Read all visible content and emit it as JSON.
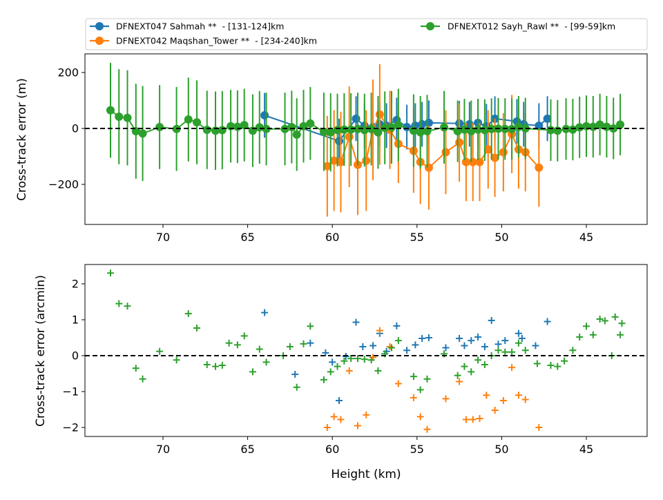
{
  "colors": {
    "blue": "#1f77b4",
    "orange": "#ff7f0e",
    "green": "#2ca02c"
  },
  "chart_data": [
    {
      "type": "line",
      "title": "",
      "xlabel": "",
      "ylabel": "Cross-track error (m)",
      "xlim": [
        74.5,
        41.5
      ],
      "ylim": [
        -350,
        270
      ],
      "x_inverted": true,
      "xticks": [
        "70",
        "65",
        "60",
        "55",
        "50",
        "45"
      ],
      "yticks": [
        "200",
        "0",
        "−200"
      ],
      "reference_line": 0,
      "legend_position": "top, above plot, 2 columns",
      "series": [
        {
          "name": "DFNEXT047 Sahmah **  - [131-124]km",
          "color": "#1f77b4",
          "x": [
            64.0,
            59.6,
            58.6,
            58.1,
            57.6,
            57.2,
            56.8,
            56.2,
            55.6,
            55.1,
            54.7,
            54.3,
            52.5,
            51.9,
            51.4,
            50.9,
            50.4,
            49.1,
            48.7,
            47.8,
            47.3
          ],
          "y": [
            47,
            -45,
            35,
            10,
            5,
            15,
            10,
            30,
            5,
            10,
            15,
            20,
            18,
            15,
            20,
            8,
            35,
            25,
            15,
            10,
            35
          ],
          "err": [
            80,
            80,
            80,
            80,
            80,
            80,
            80,
            80,
            80,
            80,
            80,
            80,
            80,
            80,
            80,
            80,
            80,
            80,
            80,
            80,
            80
          ]
        },
        {
          "name": "DFNEXT042 Maqshan_Tower **  - [234-240]km",
          "color": "#ff7f0e",
          "x": [
            60.3,
            59.9,
            59.5,
            59.0,
            58.5,
            58.0,
            57.6,
            57.2,
            56.6,
            56.1,
            55.2,
            54.8,
            54.3,
            53.3,
            52.5,
            52.1,
            51.7,
            51.3,
            50.8,
            50.4,
            49.9,
            49.4,
            49.0,
            48.6,
            47.8
          ],
          "y": [
            -135,
            -115,
            -120,
            -30,
            -130,
            -115,
            -5,
            50,
            -5,
            -55,
            -80,
            -120,
            -140,
            -85,
            -50,
            -120,
            -120,
            -120,
            -75,
            -105,
            -85,
            -20,
            -75,
            -85,
            -140
          ],
          "err": [
            180,
            180,
            180,
            180,
            180,
            180,
            180,
            180,
            140,
            140,
            150,
            150,
            150,
            150,
            140,
            140,
            140,
            140,
            140,
            140,
            140,
            140,
            140,
            140,
            140
          ]
        },
        {
          "name": "DFNEXT012 Sayh_Rawl **  - [99-59]km",
          "color": "#2ca02c",
          "x": [
            73.1,
            72.6,
            72.1,
            71.6,
            71.2,
            70.2,
            69.2,
            68.5,
            68.0,
            67.4,
            66.9,
            66.5,
            66.0,
            65.6,
            65.2,
            64.7,
            64.3,
            63.9,
            62.8,
            62.4,
            62.1,
            61.7,
            61.3,
            60.5,
            60.1,
            59.7,
            59.3,
            58.9,
            58.5,
            58.1,
            57.7,
            57.3,
            56.9,
            56.5,
            56.1,
            55.2,
            54.8,
            54.4,
            53.4,
            52.6,
            52.2,
            51.8,
            51.4,
            51.0,
            50.6,
            50.2,
            49.8,
            49.4,
            49.0,
            48.6,
            47.1,
            46.7,
            46.2,
            45.8,
            45.4,
            45.0,
            44.6,
            44.2,
            43.8,
            43.4,
            43.0
          ],
          "y": [
            65,
            42,
            38,
            -10,
            -18,
            5,
            -2,
            32,
            22,
            -5,
            -8,
            -6,
            8,
            6,
            12,
            -8,
            4,
            -2,
            -2,
            5,
            -22,
            8,
            18,
            -12,
            -14,
            -6,
            -4,
            -4,
            -2,
            -6,
            -2,
            -14,
            2,
            4,
            12,
            -8,
            -14,
            -10,
            4,
            -10,
            -4,
            -10,
            -4,
            -6,
            -2,
            -1,
            -2,
            -2,
            6,
            0,
            -6,
            -8,
            -2,
            -4,
            4,
            8,
            6,
            14,
            6,
            0,
            14
          ],
          "err": [
            170,
            170,
            170,
            170,
            170,
            150,
            150,
            150,
            150,
            140,
            140,
            140,
            130,
            130,
            130,
            130,
            130,
            130,
            130,
            130,
            130,
            130,
            130,
            140,
            140,
            130,
            130,
            130,
            130,
            130,
            130,
            130,
            130,
            130,
            130,
            130,
            130,
            130,
            130,
            110,
            110,
            110,
            110,
            110,
            110,
            110,
            110,
            110,
            110,
            110,
            110,
            110,
            110,
            110,
            110,
            110,
            110,
            110,
            110,
            110,
            110
          ]
        }
      ]
    },
    {
      "type": "scatter",
      "title": "",
      "xlabel": "Height (km)",
      "ylabel": "Cross-track error (arcmin)",
      "xlim": [
        74.5,
        41.5
      ],
      "ylim": [
        -2.3,
        2.5
      ],
      "x_inverted": true,
      "xticks": [
        "70",
        "65",
        "60",
        "55",
        "50",
        "45"
      ],
      "yticks": [
        "2",
        "1",
        "0",
        "−1",
        "−2"
      ],
      "reference_line": 0,
      "marker": "+",
      "series": [
        {
          "color": "#1f77b4",
          "x": [
            64.0,
            62.2,
            61.3,
            60.4,
            60.0,
            59.6,
            59.2,
            58.6,
            58.2,
            57.6,
            57.2,
            56.8,
            56.2,
            55.6,
            55.1,
            54.7,
            54.3,
            53.3,
            52.5,
            52.2,
            51.8,
            51.4,
            51.0,
            50.6,
            50.2,
            49.8,
            49.0,
            48.8,
            48.0,
            47.3
          ],
          "y": [
            1.2,
            -0.52,
            0.35,
            0.08,
            -0.18,
            -1.25,
            -0.02,
            0.93,
            0.25,
            0.28,
            0.62,
            0.12,
            0.83,
            0.15,
            0.3,
            0.48,
            0.5,
            0.22,
            0.48,
            0.28,
            0.42,
            0.52,
            0.25,
            0.98,
            0.32,
            0.42,
            0.62,
            0.48,
            0.28,
            0.95
          ]
        },
        {
          "color": "#ff7f0e",
          "x": [
            60.3,
            59.9,
            59.5,
            59.0,
            58.5,
            58.0,
            57.6,
            57.2,
            56.6,
            56.1,
            55.2,
            54.8,
            54.4,
            53.3,
            52.5,
            52.1,
            51.7,
            51.3,
            50.9,
            50.4,
            49.9,
            49.4,
            49.0,
            48.6,
            47.8
          ],
          "y": [
            -2.0,
            -1.7,
            -1.78,
            -0.42,
            -1.95,
            -1.65,
            -0.05,
            0.7,
            0.25,
            -0.78,
            -1.17,
            -1.7,
            -2.05,
            -1.2,
            -0.72,
            -1.78,
            -1.78,
            -1.75,
            -1.1,
            -1.52,
            -1.25,
            -0.33,
            -1.1,
            -1.22,
            -2.0
          ]
        },
        {
          "color": "#2ca02c",
          "x": [
            73.1,
            72.6,
            72.1,
            71.6,
            71.2,
            70.2,
            69.2,
            68.5,
            68.0,
            67.4,
            66.9,
            66.5,
            66.1,
            65.6,
            65.2,
            64.7,
            64.3,
            63.9,
            62.9,
            62.5,
            62.1,
            61.7,
            61.3,
            60.5,
            60.1,
            59.7,
            59.3,
            58.9,
            58.5,
            58.1,
            57.7,
            57.3,
            56.9,
            56.5,
            56.1,
            55.2,
            54.8,
            54.4,
            53.4,
            52.6,
            52.2,
            51.8,
            51.4,
            51.0,
            50.6,
            50.2,
            49.8,
            49.4,
            49.0,
            48.6,
            47.9,
            47.1,
            46.7,
            46.3,
            45.8,
            45.4,
            45.0,
            44.6,
            44.2,
            43.9,
            43.5,
            43.0
          ],
          "y": [
            2.3,
            1.45,
            1.38,
            -0.35,
            -0.65,
            0.12,
            -0.12,
            1.17,
            0.77,
            -0.25,
            -0.3,
            -0.27,
            0.35,
            0.3,
            0.55,
            -0.45,
            0.18,
            -0.18,
            0.0,
            0.25,
            -0.88,
            0.33,
            0.82,
            -0.67,
            -0.45,
            -0.3,
            -0.15,
            -0.08,
            -0.08,
            -0.1,
            -0.12,
            -0.42,
            0.05,
            0.22,
            0.42,
            -0.58,
            -0.95,
            -0.65,
            0.05,
            -0.55,
            -0.3,
            -0.45,
            -0.12,
            -0.25,
            0.0,
            0.15,
            0.1,
            0.1,
            0.35,
            0.15,
            -0.22,
            -0.27,
            -0.3,
            -0.15,
            0.15,
            0.52,
            0.82,
            0.58,
            1.02,
            0.97,
            0.0,
            0.58
          ]
        },
        {
          "color": "#2ca02c",
          "x": [
            43.3,
            42.9
          ],
          "y": [
            1.08,
            0.9
          ]
        }
      ]
    }
  ]
}
